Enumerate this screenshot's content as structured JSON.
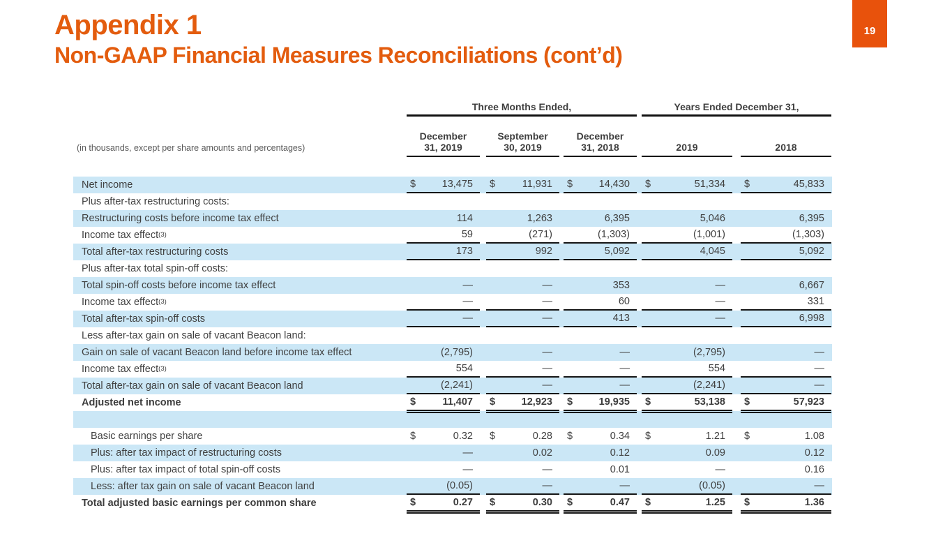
{
  "colors": {
    "title_orange": "#e35c0e",
    "page_box_orange": "#e8520c",
    "row_band_blue": "#cbe7f6",
    "rule_black": "#111111",
    "body_text": "#404040"
  },
  "header": {
    "title": "Appendix 1",
    "subtitle": "Non-GAAP Financial Measures Reconciliations (cont’d)",
    "page_number": "19"
  },
  "table": {
    "caption": "(in thousands, except per share amounts and percentages)",
    "currency_symbol": "$",
    "col_groups": [
      {
        "label": "Three Months Ended,",
        "span": 3
      },
      {
        "label": "Years Ended December 31,",
        "span": 2
      }
    ],
    "columns": [
      "December\n31, 2019",
      "September\n30, 2019",
      "December\n31, 2018",
      "2019",
      "2018"
    ],
    "rows": [
      {
        "label": "Net income",
        "dollar": true,
        "underline": "single",
        "values": [
          "13,475",
          "11,931",
          "14,430",
          "51,334",
          "45,833"
        ]
      },
      {
        "label": "Plus after-tax restructuring costs:",
        "section": true
      },
      {
        "label": "Restructuring costs before income tax effect",
        "values": [
          "114",
          "1,263",
          "6,395",
          "5,046",
          "6,395"
        ]
      },
      {
        "label": "Income tax effect",
        "sup": "(3)",
        "underline": "single",
        "values": [
          "59",
          "(271)",
          "(1,303)",
          "(1,001)",
          "(1,303)"
        ]
      },
      {
        "label": "Total after-tax restructuring costs",
        "underline": "single",
        "values": [
          "173",
          "992",
          "5,092",
          "4,045",
          "5,092"
        ]
      },
      {
        "label": "Plus after-tax total spin-off costs:",
        "section": true
      },
      {
        "label": "Total spin-off costs before income tax effect",
        "values": [
          "—",
          "—",
          "353",
          "—",
          "6,667"
        ]
      },
      {
        "label": "Income tax effect",
        "sup": "(3)",
        "underline": "single",
        "values": [
          "—",
          "—",
          "60",
          "—",
          "331"
        ]
      },
      {
        "label": "Total after-tax spin-off costs",
        "underline": "single",
        "values": [
          "—",
          "—",
          "413",
          "—",
          "6,998"
        ]
      },
      {
        "label": "Less after-tax gain on sale of vacant Beacon land:",
        "section": true
      },
      {
        "label": "Gain on sale of vacant Beacon land before income tax effect",
        "values": [
          "(2,795)",
          "—",
          "—",
          "(2,795)",
          "—"
        ]
      },
      {
        "label": "Income tax effect",
        "sup": "(3)",
        "underline": "single",
        "values": [
          "554",
          "—",
          "—",
          "554",
          "—"
        ]
      },
      {
        "label": "Total after-tax gain on sale of vacant Beacon land",
        "underline": "single",
        "values": [
          "(2,241)",
          "—",
          "—",
          "(2,241)",
          "—"
        ]
      },
      {
        "label": "Adjusted net income",
        "bold": true,
        "dollar": true,
        "underline": "double",
        "values": [
          "11,407",
          "12,923",
          "19,935",
          "53,138",
          "57,923"
        ]
      },
      {
        "label": "",
        "spacer": true
      },
      {
        "label": "Basic earnings per share",
        "indent": true,
        "dollar": true,
        "values": [
          "0.32",
          "0.28",
          "0.34",
          "1.21",
          "1.08"
        ]
      },
      {
        "label": "Plus: after tax impact of restructuring costs",
        "indent": true,
        "values": [
          "—",
          "0.02",
          "0.12",
          "0.09",
          "0.12"
        ]
      },
      {
        "label": "Plus: after tax impact of total spin-off costs",
        "indent": true,
        "values": [
          "—",
          "—",
          "0.01",
          "—",
          "0.16"
        ]
      },
      {
        "label": "Less: after tax gain on sale of vacant Beacon land",
        "indent": true,
        "underline": "single",
        "values": [
          "(0.05)",
          "—",
          "—",
          "(0.05)",
          "—"
        ]
      },
      {
        "label": "Total adjusted basic earnings per common share",
        "bold": true,
        "dollar": true,
        "underline": "double",
        "values": [
          "0.27",
          "0.30",
          "0.47",
          "1.25",
          "1.36"
        ]
      }
    ]
  }
}
